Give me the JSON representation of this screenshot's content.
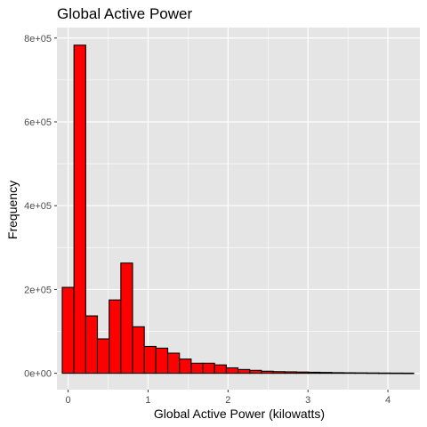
{
  "chart_data": {
    "type": "bar",
    "title": "Global Active Power",
    "xlabel": "Global Active Power (kilowatts)",
    "ylabel": "Frequency",
    "bin_width": 0.1466,
    "x_bin_centers": [
      0.0,
      0.1466,
      0.2931,
      0.4397,
      0.5862,
      0.7328,
      0.8793,
      1.0259,
      1.1724,
      1.319,
      1.4655,
      1.6121,
      1.7586,
      1.9052,
      2.0517,
      2.1983,
      2.3448,
      2.4914,
      2.6379,
      2.7845,
      2.931,
      3.0776,
      3.2241,
      3.3707,
      3.5172,
      3.6638,
      3.8103,
      3.9569,
      4.1034,
      4.25
    ],
    "values": [
      205000,
      783000,
      137000,
      82000,
      175000,
      263000,
      111000,
      64000,
      60000,
      48000,
      34000,
      24000,
      24000,
      20000,
      13000,
      9000,
      7000,
      5000,
      4000,
      3500,
      3000,
      2500,
      2000,
      1500,
      1200,
      1000,
      800,
      600,
      500,
      400
    ],
    "xlim": [
      -0.14,
      4.4
    ],
    "ylim": [
      -39000,
      825000
    ],
    "x_ticks": [
      {
        "value": 0,
        "label": "0"
      },
      {
        "value": 1,
        "label": "1"
      },
      {
        "value": 2,
        "label": "2"
      },
      {
        "value": 3,
        "label": "3"
      },
      {
        "value": 4,
        "label": "4"
      }
    ],
    "y_ticks": [
      {
        "value": 0,
        "label": "0e+00"
      },
      {
        "value": 200000,
        "label": "2e+05"
      },
      {
        "value": 400000,
        "label": "4e+05"
      },
      {
        "value": 600000,
        "label": "6e+05"
      },
      {
        "value": 800000,
        "label": "8e+05"
      }
    ],
    "grid": true,
    "bar_fill": "#ff0000",
    "bar_outline": "#000000",
    "panel_background": "#e5e5e5",
    "grid_color": "#ffffff"
  }
}
